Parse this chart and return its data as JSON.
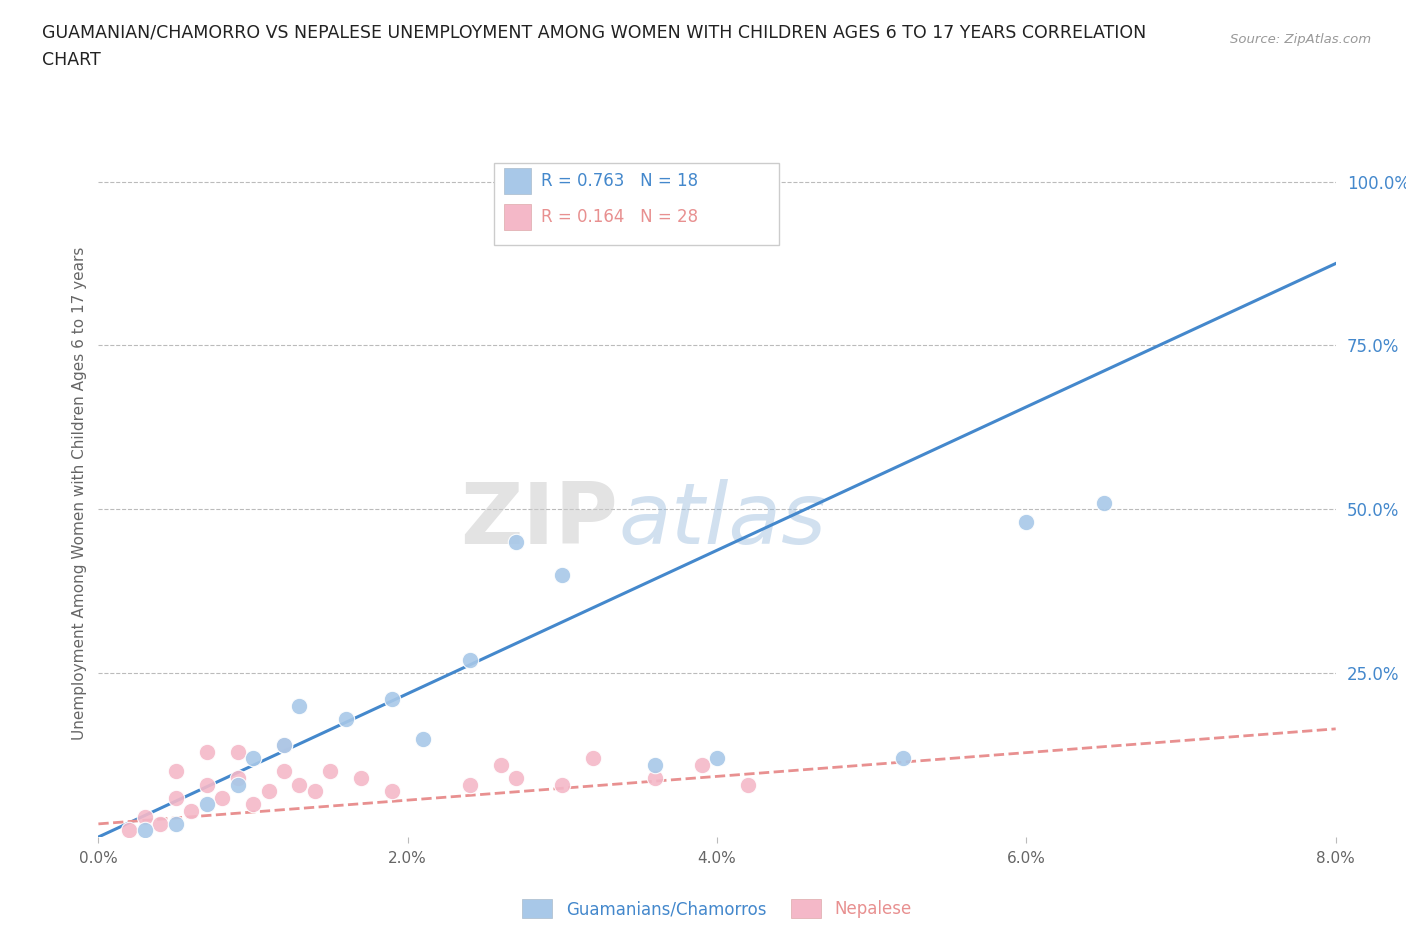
{
  "title_line1": "GUAMANIAN/CHAMORRO VS NEPALESE UNEMPLOYMENT AMONG WOMEN WITH CHILDREN AGES 6 TO 17 YEARS CORRELATION",
  "title_line2": "CHART",
  "source": "Source: ZipAtlas.com",
  "ylabel": "Unemployment Among Women with Children Ages 6 to 17 years",
  "xlim": [
    0.0,
    0.08
  ],
  "ylim": [
    0.0,
    1.05
  ],
  "xticks": [
    0.0,
    0.02,
    0.04,
    0.06,
    0.08
  ],
  "xtick_labels": [
    "0.0%",
    "2.0%",
    "4.0%",
    "6.0%",
    "8.0%"
  ],
  "yticks_right": [
    0.25,
    0.5,
    0.75,
    1.0
  ],
  "ytick_labels_right": [
    "25.0%",
    "50.0%",
    "75.0%",
    "100.0%"
  ],
  "blue_R": 0.763,
  "blue_N": 18,
  "pink_R": 0.164,
  "pink_N": 28,
  "blue_scatter_color": "#a8c8e8",
  "pink_scatter_color": "#f4b8c8",
  "blue_line_color": "#4488cc",
  "pink_line_color": "#e89090",
  "watermark_zip": "ZIP",
  "watermark_atlas": "atlas",
  "legend_label_blue": "Guamanians/Chamorros",
  "legend_label_pink": "Nepalese",
  "guam_x": [
    0.003,
    0.005,
    0.007,
    0.009,
    0.01,
    0.012,
    0.013,
    0.016,
    0.019,
    0.021,
    0.024,
    0.027,
    0.03,
    0.036,
    0.04,
    0.052,
    0.06,
    0.065
  ],
  "guam_y": [
    0.01,
    0.02,
    0.05,
    0.08,
    0.12,
    0.14,
    0.2,
    0.18,
    0.21,
    0.15,
    0.27,
    0.45,
    0.4,
    0.11,
    0.12,
    0.12,
    0.48,
    0.51
  ],
  "nepal_x": [
    0.002,
    0.003,
    0.004,
    0.005,
    0.005,
    0.006,
    0.007,
    0.007,
    0.008,
    0.009,
    0.009,
    0.01,
    0.011,
    0.012,
    0.012,
    0.013,
    0.014,
    0.015,
    0.017,
    0.019,
    0.024,
    0.026,
    0.027,
    0.03,
    0.032,
    0.036,
    0.039,
    0.042
  ],
  "nepal_y": [
    0.01,
    0.03,
    0.02,
    0.06,
    0.1,
    0.04,
    0.08,
    0.13,
    0.06,
    0.09,
    0.13,
    0.05,
    0.07,
    0.1,
    0.14,
    0.08,
    0.07,
    0.1,
    0.09,
    0.07,
    0.08,
    0.11,
    0.09,
    0.08,
    0.12,
    0.09,
    0.11,
    0.08
  ],
  "blue_line_x": [
    0.0,
    0.08
  ],
  "blue_line_y": [
    0.0,
    0.875
  ],
  "pink_line_x": [
    0.0,
    0.08
  ],
  "pink_line_y": [
    0.02,
    0.165
  ],
  "background_color": "#ffffff",
  "grid_color": "#bbbbbb",
  "title_color": "#222222",
  "axis_label_color": "#666666",
  "right_tick_color": "#4488cc"
}
